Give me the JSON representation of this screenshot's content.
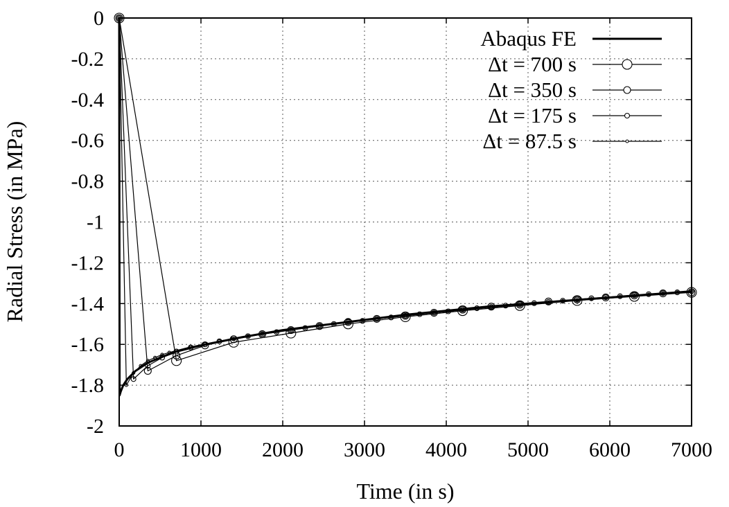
{
  "chart_data": {
    "type": "line",
    "title": "",
    "xlabel": "Time (in s)",
    "ylabel": "Radial Stress (in MPa)",
    "xlim": [
      0,
      7000
    ],
    "ylim": [
      -2,
      0
    ],
    "xticks": [
      0,
      1000,
      2000,
      3000,
      4000,
      5000,
      6000,
      7000
    ],
    "yticks": [
      0,
      -0.2,
      -0.4,
      -0.6,
      -0.8,
      -1,
      -1.2,
      -1.4,
      -1.6,
      -1.8,
      -2
    ],
    "xtick_labels": [
      "0",
      "1000",
      "2000",
      "3000",
      "4000",
      "5000",
      "6000",
      "7000"
    ],
    "ytick_labels": [
      "0",
      "-0.2",
      "-0.4",
      "-0.6",
      "-0.8",
      "-1",
      "-1.2",
      "-1.4",
      "-1.6",
      "-1.8",
      "-2"
    ],
    "grid": true,
    "legend_position": "top-right",
    "series": [
      {
        "name": "Abaqus FE",
        "style": "thick-line",
        "x": [
          0,
          5,
          20,
          50,
          100,
          200,
          350,
          500,
          700,
          1000,
          1500,
          2000,
          2500,
          3000,
          3500,
          4000,
          4500,
          5000,
          5500,
          6000,
          6500,
          7000
        ],
        "y": [
          0,
          -1.85,
          -1.83,
          -1.8,
          -1.77,
          -1.73,
          -1.69,
          -1.665,
          -1.635,
          -1.605,
          -1.565,
          -1.53,
          -1.505,
          -1.48,
          -1.455,
          -1.435,
          -1.415,
          -1.4,
          -1.385,
          -1.37,
          -1.355,
          -1.34
        ]
      },
      {
        "name": "Δt = 700 s",
        "style": "line-marker-large",
        "x": [
          0,
          700,
          1400,
          2100,
          2800,
          3500,
          4200,
          4900,
          5600,
          6300,
          7000
        ],
        "y": [
          0,
          -1.68,
          -1.59,
          -1.545,
          -1.5,
          -1.465,
          -1.435,
          -1.41,
          -1.385,
          -1.365,
          -1.345
        ]
      },
      {
        "name": "Δt = 350 s",
        "style": "line-marker-medium",
        "x": [
          0,
          350,
          700,
          1050,
          1400,
          1750,
          2100,
          2450,
          2800,
          3150,
          3500,
          3850,
          4200,
          4550,
          4900,
          5250,
          5600,
          5950,
          6300,
          6650,
          7000
        ],
        "y": [
          0,
          -1.73,
          -1.655,
          -1.605,
          -1.575,
          -1.55,
          -1.53,
          -1.51,
          -1.49,
          -1.475,
          -1.46,
          -1.445,
          -1.43,
          -1.415,
          -1.405,
          -1.39,
          -1.38,
          -1.37,
          -1.36,
          -1.35,
          -1.345
        ]
      },
      {
        "name": "Δt = 175 s",
        "style": "line-marker-small",
        "x": [
          0,
          175,
          350,
          525,
          700,
          875,
          1050,
          1225,
          1400,
          1575,
          1750,
          1925,
          2100,
          2275,
          2450,
          2625,
          2800,
          2975,
          3150,
          3325,
          3500,
          3675,
          3850,
          4025,
          4200,
          4375,
          4550,
          4725,
          4900,
          5075,
          5250,
          5425,
          5600,
          5775,
          5950,
          6125,
          6300,
          6475,
          6650,
          6825,
          7000
        ],
        "y": [
          0,
          -1.77,
          -1.705,
          -1.665,
          -1.635,
          -1.615,
          -1.6,
          -1.585,
          -1.57,
          -1.56,
          -1.55,
          -1.54,
          -1.53,
          -1.52,
          -1.51,
          -1.5,
          -1.49,
          -1.485,
          -1.475,
          -1.468,
          -1.46,
          -1.452,
          -1.445,
          -1.438,
          -1.43,
          -1.423,
          -1.417,
          -1.41,
          -1.404,
          -1.398,
          -1.392,
          -1.386,
          -1.38,
          -1.374,
          -1.369,
          -1.364,
          -1.359,
          -1.354,
          -1.349,
          -1.345,
          -1.34
        ]
      },
      {
        "name": "Δt = 87.5 s",
        "style": "line-marker-tiny",
        "x": [
          0,
          87.5,
          175,
          262.5,
          350,
          437.5,
          525,
          612.5,
          700,
          875,
          1050,
          1225,
          1400,
          1575,
          1750,
          1925,
          2100,
          2275,
          2450,
          2625,
          2800,
          2975,
          3150,
          3325,
          3500,
          3675,
          3850,
          4025,
          4200,
          4375,
          4550,
          4725,
          4900,
          5075,
          5250,
          5425,
          5600,
          5775,
          5950,
          6125,
          6300,
          6475,
          6650,
          6825,
          7000
        ],
        "y": [
          0,
          -1.8,
          -1.74,
          -1.705,
          -1.68,
          -1.665,
          -1.65,
          -1.64,
          -1.63,
          -1.612,
          -1.598,
          -1.584,
          -1.572,
          -1.56,
          -1.549,
          -1.539,
          -1.529,
          -1.519,
          -1.51,
          -1.5,
          -1.491,
          -1.483,
          -1.475,
          -1.467,
          -1.459,
          -1.452,
          -1.445,
          -1.438,
          -1.431,
          -1.424,
          -1.418,
          -1.412,
          -1.405,
          -1.399,
          -1.393,
          -1.387,
          -1.382,
          -1.376,
          -1.371,
          -1.365,
          -1.36,
          -1.355,
          -1.35,
          -1.345,
          -1.34
        ]
      }
    ]
  }
}
